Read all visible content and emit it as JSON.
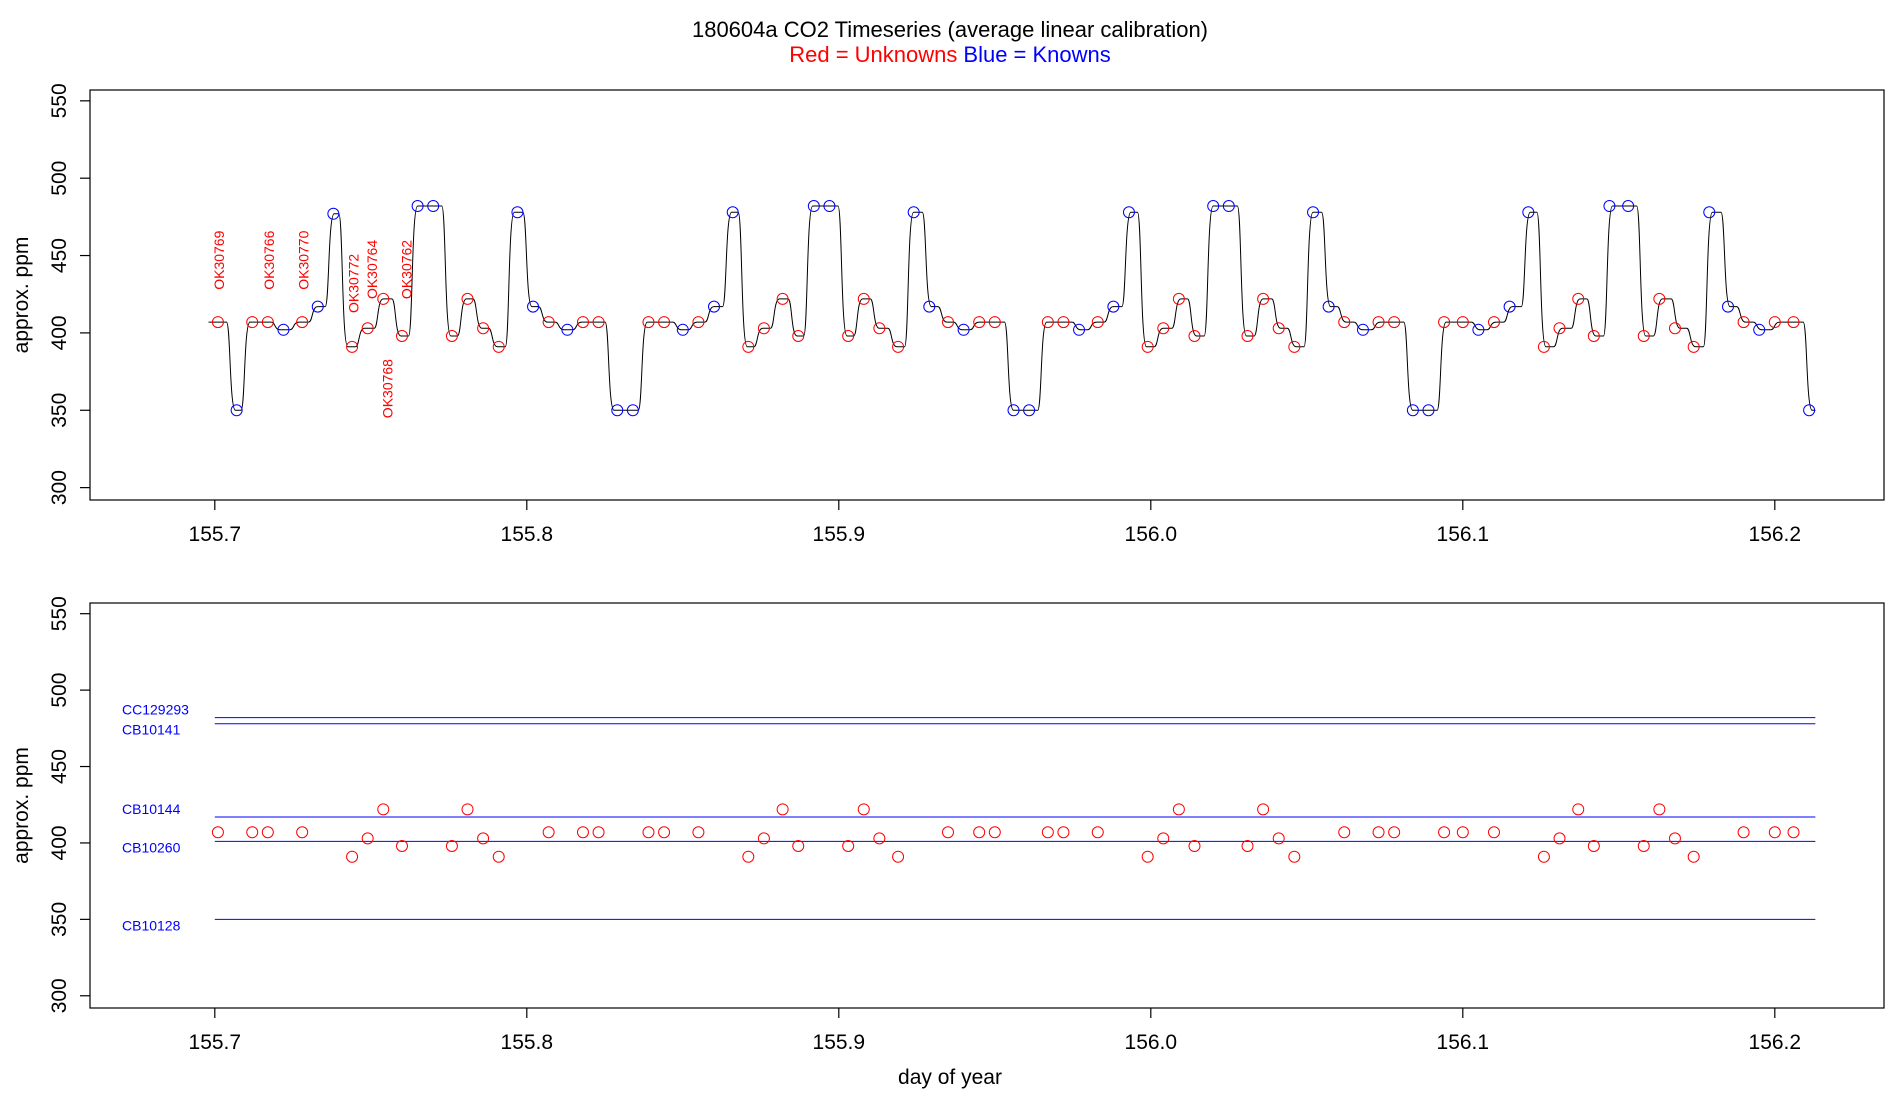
{
  "title": "180604a   CO2 Timeseries (average linear calibration)",
  "subtitle": {
    "red_part": "Red = Unknowns",
    "blue_part": "Blue = Knowns"
  },
  "colors": {
    "unknown": "#ff0000",
    "known": "#0000ff",
    "trace": "#000000"
  },
  "chart_data": [
    {
      "type": "line",
      "xlabel": "",
      "ylabel": "approx. ppm",
      "xlim": [
        155.66,
        156.235
      ],
      "ylim": [
        292,
        557
      ],
      "xticks": [
        "155.7",
        "155.8",
        "155.9",
        "156.0",
        "156.1",
        "156.2"
      ],
      "yticks": [
        "300",
        "350",
        "400",
        "450",
        "500",
        "550"
      ],
      "trace": {
        "x": [
          155.698,
          155.702,
          155.707,
          155.711,
          155.716,
          155.722,
          155.728,
          155.734,
          155.738,
          155.743,
          155.749,
          155.755,
          155.76,
          155.766,
          155.771,
          155.776,
          155.781,
          155.786,
          155.791,
          155.797,
          155.802,
          155.807,
          155.813,
          155.818,
          155.823,
          155.829,
          155.834,
          155.839,
          155.845,
          155.85,
          155.855,
          155.861,
          155.866,
          155.871,
          155.876,
          155.882,
          155.887,
          155.892,
          155.898,
          155.903,
          155.908,
          155.914,
          155.919,
          155.925,
          155.93,
          155.935,
          155.94,
          155.946,
          155.951,
          155.957,
          155.962,
          155.967,
          155.973,
          155.978,
          155.983,
          155.989,
          155.994,
          155.999,
          156.005,
          156.01,
          156.015,
          156.021,
          156.026,
          156.031,
          156.037,
          156.042,
          156.047,
          156.053,
          156.058,
          156.063,
          156.069,
          156.074,
          156.079,
          156.085,
          156.09,
          156.095,
          156.101,
          156.106,
          156.111,
          156.117,
          156.122,
          156.127,
          156.133,
          156.138,
          156.143,
          156.149,
          156.154,
          156.159,
          156.165,
          156.17,
          156.175,
          156.181,
          156.186,
          156.191,
          156.197,
          156.202,
          156.207,
          156.213
        ],
        "y": [
          407,
          407,
          350,
          407,
          407,
          402,
          407,
          417,
          477,
          391,
          403,
          422,
          398,
          482,
          482,
          398,
          422,
          403,
          391,
          478,
          417,
          407,
          402,
          407,
          407,
          350,
          350,
          407,
          407,
          402,
          407,
          417,
          478,
          391,
          403,
          422,
          398,
          482,
          482,
          398,
          422,
          403,
          391,
          478,
          417,
          407,
          402,
          407,
          407,
          350,
          350,
          407,
          407,
          402,
          407,
          417,
          478,
          391,
          403,
          422,
          398,
          482,
          482,
          398,
          422,
          403,
          391,
          478,
          417,
          407,
          402,
          407,
          407,
          350,
          350,
          407,
          407,
          402,
          407,
          417,
          478,
          391,
          403,
          422,
          398,
          482,
          482,
          398,
          422,
          403,
          391,
          478,
          417,
          407,
          402,
          407,
          407,
          350
        ]
      },
      "points": {
        "x": [
          155.701,
          155.707,
          155.712,
          155.717,
          155.722,
          155.728,
          155.733,
          155.738,
          155.744,
          155.749,
          155.754,
          155.76,
          155.765,
          155.77,
          155.776,
          155.781,
          155.786,
          155.791,
          155.797,
          155.802,
          155.807,
          155.813,
          155.818,
          155.823,
          155.829,
          155.834,
          155.839,
          155.844,
          155.85,
          155.855,
          155.86,
          155.866,
          155.871,
          155.876,
          155.882,
          155.887,
          155.892,
          155.897,
          155.903,
          155.908,
          155.913,
          155.919,
          155.924,
          155.929,
          155.935,
          155.94,
          155.945,
          155.95,
          155.956,
          155.961,
          155.967,
          155.972,
          155.977,
          155.983,
          155.988,
          155.993,
          155.999,
          156.004,
          156.009,
          156.014,
          156.02,
          156.025,
          156.031,
          156.036,
          156.041,
          156.046,
          156.052,
          156.057,
          156.062,
          156.068,
          156.073,
          156.078,
          156.084,
          156.089,
          156.094,
          156.1,
          156.105,
          156.11,
          156.115,
          156.121,
          156.126,
          156.131,
          156.137,
          156.142,
          156.147,
          156.153,
          156.158,
          156.163,
          156.168,
          156.174,
          156.179,
          156.185,
          156.19,
          156.195,
          156.2,
          156.206,
          156.211
        ],
        "y": [
          407,
          350,
          407,
          407,
          402,
          407,
          417,
          477,
          391,
          403,
          422,
          398,
          482,
          482,
          398,
          422,
          403,
          391,
          478,
          417,
          407,
          402,
          407,
          407,
          350,
          350,
          407,
          407,
          402,
          407,
          417,
          478,
          391,
          403,
          422,
          398,
          482,
          482,
          398,
          422,
          403,
          391,
          478,
          417,
          407,
          402,
          407,
          407,
          350,
          350,
          407,
          407,
          402,
          407,
          417,
          478,
          391,
          403,
          422,
          398,
          482,
          482,
          398,
          422,
          403,
          391,
          478,
          417,
          407,
          402,
          407,
          407,
          350,
          350,
          407,
          407,
          402,
          407,
          417,
          478,
          391,
          403,
          422,
          398,
          482,
          482,
          398,
          422,
          403,
          391,
          478,
          417,
          407,
          402,
          407,
          407,
          350
        ],
        "kind": [
          "u",
          "k",
          "u",
          "u",
          "k",
          "u",
          "k",
          "k",
          "u",
          "u",
          "u",
          "u",
          "k",
          "k",
          "u",
          "u",
          "u",
          "u",
          "k",
          "k",
          "u",
          "k",
          "u",
          "u",
          "k",
          "k",
          "u",
          "u",
          "k",
          "u",
          "k",
          "k",
          "u",
          "u",
          "u",
          "u",
          "k",
          "k",
          "u",
          "u",
          "u",
          "u",
          "k",
          "k",
          "u",
          "k",
          "u",
          "u",
          "k",
          "k",
          "u",
          "u",
          "k",
          "u",
          "k",
          "k",
          "u",
          "u",
          "u",
          "u",
          "k",
          "k",
          "u",
          "u",
          "u",
          "u",
          "k",
          "k",
          "u",
          "k",
          "u",
          "u",
          "k",
          "k",
          "u",
          "u",
          "k",
          "u",
          "k",
          "k",
          "u",
          "u",
          "u",
          "u",
          "k",
          "k",
          "u",
          "u",
          "u",
          "u",
          "k",
          "k",
          "u",
          "k",
          "u",
          "u",
          "k"
        ]
      },
      "annotations": [
        {
          "text": "OK30769",
          "x": 155.703,
          "y": 447
        },
        {
          "text": "OK30766",
          "x": 155.719,
          "y": 447
        },
        {
          "text": "OK30770",
          "x": 155.73,
          "y": 447
        },
        {
          "text": "OK30772",
          "x": 155.746,
          "y": 432
        },
        {
          "text": "OK30764",
          "x": 155.752,
          "y": 441
        },
        {
          "text": "OK30768",
          "x": 155.757,
          "y": 364
        },
        {
          "text": "OK30762",
          "x": 155.763,
          "y": 441
        }
      ]
    },
    {
      "type": "scatter",
      "xlabel": "day of year",
      "ylabel": "approx. ppm",
      "xlim": [
        155.66,
        156.235
      ],
      "ylim": [
        292,
        557
      ],
      "xticks": [
        "155.7",
        "155.8",
        "155.9",
        "156.0",
        "156.1",
        "156.2"
      ],
      "yticks": [
        "300",
        "350",
        "400",
        "450",
        "500",
        "550"
      ],
      "reference_lines": [
        {
          "name": "CC129293",
          "y": 482
        },
        {
          "name": "CB10141",
          "y": 478
        },
        {
          "name": "CB10144",
          "y": 417
        },
        {
          "name": "CB10260",
          "y": 401
        },
        {
          "name": "CB10128",
          "y": 350
        }
      ],
      "x_start": 155.7,
      "x_end": 156.213,
      "unknowns": {
        "x": [
          155.701,
          155.712,
          155.717,
          155.728,
          155.744,
          155.749,
          155.754,
          155.76,
          155.776,
          155.781,
          155.786,
          155.791,
          155.807,
          155.818,
          155.823,
          155.839,
          155.844,
          155.855,
          155.871,
          155.876,
          155.882,
          155.887,
          155.903,
          155.908,
          155.913,
          155.919,
          155.935,
          155.945,
          155.95,
          155.967,
          155.972,
          155.983,
          155.999,
          156.004,
          156.009,
          156.014,
          156.031,
          156.036,
          156.041,
          156.046,
          156.062,
          156.073,
          156.078,
          156.094,
          156.1,
          156.11,
          156.126,
          156.131,
          156.137,
          156.142,
          156.158,
          156.163,
          156.168,
          156.174,
          156.19,
          156.2,
          156.206
        ],
        "y": [
          407,
          407,
          407,
          407,
          391,
          403,
          422,
          398,
          398,
          422,
          403,
          391,
          407,
          407,
          407,
          407,
          407,
          407,
          391,
          403,
          422,
          398,
          398,
          422,
          403,
          391,
          407,
          407,
          407,
          407,
          407,
          407,
          391,
          403,
          422,
          398,
          398,
          422,
          403,
          391,
          407,
          407,
          407,
          407,
          407,
          407,
          391,
          403,
          422,
          398,
          398,
          422,
          403,
          391,
          407,
          407,
          407
        ]
      }
    }
  ]
}
